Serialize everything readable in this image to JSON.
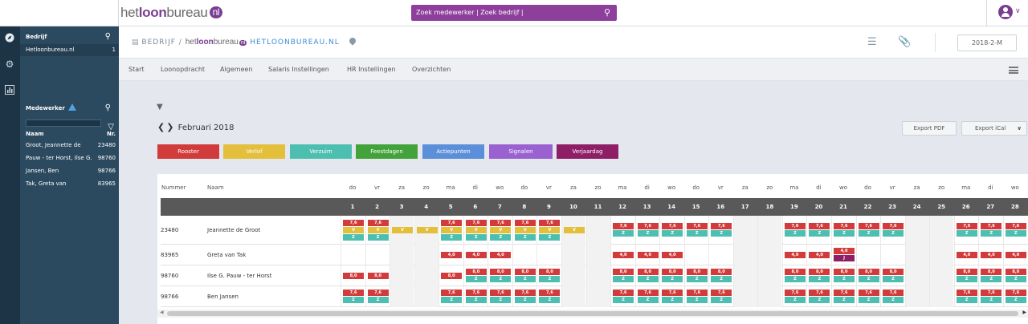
{
  "topbar": {
    "logo_part1": "het",
    "logo_part2": "loon",
    "logo_part3": "bureau",
    "logo_badge": "nl",
    "search_text": "Zoek medewerker | Zoek bedrijf |",
    "search_icon": "search-icon",
    "user_icon": "user-circle-icon"
  },
  "rail": {
    "icons": [
      "compass-icon",
      "gear-icon",
      "chart-icon"
    ]
  },
  "sidebar": {
    "bedrijf_title": "Bedrijf",
    "bedrijf_row": {
      "name": "Hetloonbureau.nl",
      "count": "1"
    },
    "medewerker_title": "Medewerker",
    "col_naam": "Naam",
    "col_nr": "Nr.",
    "employees": [
      {
        "name": "Groot, Jeannette de",
        "nr": "23480"
      },
      {
        "name": "Pauw - ter Horst, Ilse G.",
        "nr": "98760"
      },
      {
        "name": "Jansen, Ben",
        "nr": "98766"
      },
      {
        "name": "Tak, Greta van",
        "nr": "83965"
      }
    ]
  },
  "header": {
    "crumb_bedrijf": "BEDRIJF /",
    "crumb_logo_a": "het",
    "crumb_logo_b": "loon",
    "crumb_logo_c": "bureau",
    "crumb_logo_badge": "nl",
    "crumb_company": "HETLOONBUREAU.NL",
    "period": "2018-2-M"
  },
  "tabs": [
    "Start",
    "Loonopdracht",
    "Algemeen",
    "Salaris Instellingen",
    "HR Instellingen",
    "Overzichten"
  ],
  "calendar": {
    "month_label": "Februari 2018",
    "export_pdf": "Export PDF",
    "export_ical": "Export iCal",
    "legend": [
      {
        "label": "Rooster",
        "color": "#d23b3b"
      },
      {
        "label": "Verlof",
        "color": "#e3bf3c"
      },
      {
        "label": "Verzuim",
        "color": "#4dbfb1"
      },
      {
        "label": "Feestdagen",
        "color": "#43a33b"
      },
      {
        "label": "Actiepunten",
        "color": "#5b8fd9"
      },
      {
        "label": "Signalen",
        "color": "#9a62d1"
      },
      {
        "label": "Verjaardag",
        "color": "#8e1f67"
      }
    ],
    "col_nummer": "Nummer",
    "col_naam": "Naam",
    "day_names": [
      "do",
      "vr",
      "za",
      "zo",
      "ma",
      "di",
      "wo",
      "do",
      "vr",
      "za",
      "zo",
      "ma",
      "di",
      "wo",
      "do",
      "vr",
      "za",
      "zo",
      "ma",
      "di",
      "wo",
      "do",
      "vr",
      "za",
      "zo",
      "ma",
      "di",
      "wo"
    ],
    "day_numbers": [
      "1",
      "2",
      "3",
      "4",
      "5",
      "6",
      "7",
      "8",
      "9",
      "10",
      "11",
      "12",
      "13",
      "14",
      "15",
      "16",
      "17",
      "18",
      "19",
      "20",
      "21",
      "22",
      "23",
      "24",
      "25",
      "26",
      "27",
      "28"
    ],
    "rows": [
      {
        "nr": "23480",
        "name": "Jeannette de Groot",
        "cells": [
          [
            [
              "r",
              "7,6"
            ],
            [
              "y",
              "V"
            ],
            [
              "t",
              "Z"
            ]
          ],
          [
            [
              "r",
              "7,6"
            ],
            [
              "y",
              "V"
            ],
            [
              "t",
              "Z"
            ]
          ],
          [
            [
              "y",
              "V"
            ]
          ],
          [
            [
              "y",
              "V"
            ]
          ],
          [
            [
              "r",
              "7,6"
            ],
            [
              "y",
              "V"
            ],
            [
              "t",
              "Z"
            ]
          ],
          [
            [
              "r",
              "7,6"
            ],
            [
              "y",
              "V"
            ],
            [
              "t",
              "Z"
            ]
          ],
          [
            [
              "r",
              "7,6"
            ],
            [
              "y",
              "V"
            ],
            [
              "t",
              "Z"
            ]
          ],
          [
            [
              "r",
              "7,6"
            ],
            [
              "y",
              "V"
            ],
            [
              "t",
              "Z"
            ]
          ],
          [
            [
              "r",
              "7,6"
            ],
            [
              "y",
              "V"
            ],
            [
              "t",
              "Z"
            ]
          ],
          [
            [
              "y",
              "V"
            ]
          ],
          [],
          [
            [
              "r",
              "7,6"
            ],
            [
              "t",
              "Z"
            ]
          ],
          [
            [
              "r",
              "7,6"
            ],
            [
              "t",
              "Z"
            ]
          ],
          [
            [
              "r",
              "7,6"
            ],
            [
              "t",
              "Z"
            ]
          ],
          [
            [
              "r",
              "7,6"
            ],
            [
              "t",
              "Z"
            ]
          ],
          [
            [
              "r",
              "7,6"
            ],
            [
              "t",
              "Z"
            ]
          ],
          [],
          [],
          [
            [
              "r",
              "7,6"
            ],
            [
              "t",
              "Z"
            ]
          ],
          [
            [
              "r",
              "7,6"
            ],
            [
              "t",
              "Z"
            ]
          ],
          [
            [
              "r",
              "7,6"
            ],
            [
              "t",
              "Z"
            ]
          ],
          [
            [
              "r",
              "7,6"
            ],
            [
              "t",
              "Z"
            ]
          ],
          [
            [
              "r",
              "7,6"
            ],
            [
              "t",
              "Z"
            ]
          ],
          [],
          [],
          [
            [
              "r",
              "7,6"
            ],
            [
              "t",
              "Z"
            ]
          ],
          [
            [
              "r",
              "7,6"
            ],
            [
              "t",
              "Z"
            ]
          ],
          [
            [
              "r",
              "7,6"
            ],
            [
              "t",
              "Z"
            ]
          ]
        ]
      },
      {
        "nr": "83965",
        "name": "Greta van Tak",
        "cells": [
          [],
          [],
          [],
          [],
          [
            [
              "r",
              "4,0"
            ]
          ],
          [
            [
              "r",
              "4,0"
            ]
          ],
          [
            [
              "r",
              "4,0"
            ]
          ],
          [],
          [],
          [],
          [],
          [
            [
              "r",
              "4,0"
            ]
          ],
          [
            [
              "r",
              "4,0"
            ]
          ],
          [
            [
              "r",
              "4,0"
            ]
          ],
          [],
          [],
          [],
          [],
          [
            [
              "r",
              "4,0"
            ]
          ],
          [
            [
              "r",
              "4,0"
            ]
          ],
          [
            [
              "r",
              "4,0"
            ],
            [
              "p",
              "J"
            ]
          ],
          [],
          [],
          [],
          [],
          [
            [
              "r",
              "4,0"
            ]
          ],
          [
            [
              "r",
              "4,0"
            ]
          ],
          [
            [
              "r",
              "4,0"
            ]
          ]
        ]
      },
      {
        "nr": "98760",
        "name": "Ilse G. Pauw - ter Horst",
        "cells": [
          [
            [
              "r",
              "8,0"
            ]
          ],
          [
            [
              "r",
              "8,0"
            ]
          ],
          [],
          [],
          [
            [
              "r",
              "8,0"
            ]
          ],
          [
            [
              "r",
              "8,0"
            ],
            [
              "t",
              "Z"
            ]
          ],
          [
            [
              "r",
              "8,0"
            ],
            [
              "t",
              "Z"
            ]
          ],
          [
            [
              "r",
              "8,0"
            ],
            [
              "t",
              "Z"
            ]
          ],
          [
            [
              "r",
              "8,0"
            ],
            [
              "t",
              "Z"
            ]
          ],
          [],
          [],
          [
            [
              "r",
              "8,0"
            ],
            [
              "t",
              "Z"
            ]
          ],
          [
            [
              "r",
              "8,0"
            ],
            [
              "t",
              "Z"
            ]
          ],
          [
            [
              "r",
              "8,0"
            ],
            [
              "t",
              "Z"
            ]
          ],
          [
            [
              "r",
              "8,0"
            ],
            [
              "t",
              "Z"
            ]
          ],
          [
            [
              "r",
              "8,0"
            ],
            [
              "t",
              "Z"
            ]
          ],
          [],
          [],
          [
            [
              "r",
              "8,0"
            ],
            [
              "t",
              "Z"
            ]
          ],
          [
            [
              "r",
              "8,0"
            ],
            [
              "t",
              "Z"
            ]
          ],
          [
            [
              "r",
              "8,0"
            ],
            [
              "t",
              "Z"
            ]
          ],
          [
            [
              "r",
              "8,0"
            ],
            [
              "t",
              "Z"
            ]
          ],
          [
            [
              "r",
              "8,0"
            ],
            [
              "t",
              "Z"
            ]
          ],
          [],
          [],
          [
            [
              "r",
              "8,0"
            ],
            [
              "t",
              "Z"
            ]
          ],
          [
            [
              "r",
              "8,0"
            ],
            [
              "t",
              "Z"
            ]
          ],
          [
            [
              "r",
              "8,0"
            ],
            [
              "t",
              "Z"
            ]
          ]
        ]
      },
      {
        "nr": "98766",
        "name": "Ben Jansen",
        "cells": [
          [
            [
              "r",
              "7,6"
            ],
            [
              "t",
              "Z"
            ]
          ],
          [
            [
              "r",
              "7,6"
            ],
            [
              "t",
              "Z"
            ]
          ],
          [],
          [],
          [
            [
              "r",
              "7,6"
            ],
            [
              "t",
              "Z"
            ]
          ],
          [
            [
              "r",
              "7,6"
            ],
            [
              "t",
              "Z"
            ]
          ],
          [
            [
              "r",
              "7,6"
            ],
            [
              "t",
              "Z"
            ]
          ],
          [
            [
              "r",
              "7,6"
            ],
            [
              "t",
              "Z"
            ]
          ],
          [
            [
              "r",
              "7,6"
            ],
            [
              "t",
              "Z"
            ]
          ],
          [],
          [],
          [
            [
              "r",
              "7,6"
            ],
            [
              "t",
              "Z"
            ]
          ],
          [
            [
              "r",
              "7,6"
            ],
            [
              "t",
              "Z"
            ]
          ],
          [
            [
              "r",
              "7,6"
            ],
            [
              "t",
              "Z"
            ]
          ],
          [
            [
              "r",
              "7,6"
            ],
            [
              "t",
              "Z"
            ]
          ],
          [
            [
              "r",
              "7,6"
            ],
            [
              "t",
              "Z"
            ]
          ],
          [],
          [],
          [
            [
              "r",
              "7,6"
            ],
            [
              "t",
              "Z"
            ]
          ],
          [
            [
              "r",
              "7,6"
            ],
            [
              "t",
              "Z"
            ]
          ],
          [
            [
              "r",
              "7,6"
            ],
            [
              "t",
              "Z"
            ]
          ],
          [
            [
              "r",
              "7,6"
            ],
            [
              "t",
              "Z"
            ]
          ],
          [
            [
              "r",
              "7,6"
            ],
            [
              "t",
              "Z"
            ]
          ],
          [],
          [],
          [
            [
              "r",
              "7,6"
            ],
            [
              "t",
              "Z"
            ]
          ],
          [
            [
              "r",
              "7,6"
            ],
            [
              "t",
              "Z"
            ]
          ],
          [
            [
              "r",
              "7,6"
            ],
            [
              "t",
              "Z"
            ]
          ]
        ]
      }
    ],
    "tag_colors": {
      "r": "#d23b3b",
      "y": "#e3bf3c",
      "t": "#4dbfb1",
      "p": "#8e1f67"
    }
  }
}
